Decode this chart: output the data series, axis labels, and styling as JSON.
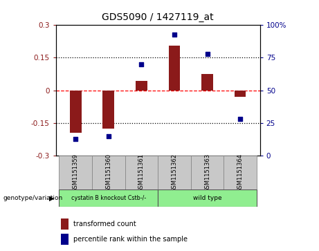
{
  "title": "GDS5090 / 1427119_at",
  "samples": [
    "GSM1151359",
    "GSM1151360",
    "GSM1151361",
    "GSM1151362",
    "GSM1151363",
    "GSM1151364"
  ],
  "bar_values": [
    -0.195,
    -0.175,
    0.045,
    0.205,
    0.075,
    -0.03
  ],
  "percentile_values": [
    13,
    15,
    70,
    93,
    78,
    28
  ],
  "bar_color": "#8B1A1A",
  "dot_color": "#00008B",
  "ylim_left": [
    -0.3,
    0.3
  ],
  "ylim_right": [
    0,
    100
  ],
  "yticks_left": [
    -0.3,
    -0.15,
    0,
    0.15,
    0.3
  ],
  "yticks_right": [
    0,
    25,
    50,
    75,
    100
  ],
  "ytick_labels_left": [
    "-0.3",
    "-0.15",
    "0",
    "0.15",
    "0.3"
  ],
  "ytick_labels_right": [
    "0",
    "25",
    "50",
    "75",
    "100%"
  ],
  "hlines": [
    0.15,
    0,
    -0.15
  ],
  "hline_styles": [
    "dotted",
    "dashed",
    "dotted"
  ],
  "hline_colors": [
    "black",
    "red",
    "black"
  ],
  "group1_label": "cystatin B knockout Cstb-/-",
  "group2_label": "wild type",
  "group1_indices": [
    0,
    1,
    2
  ],
  "group2_indices": [
    3,
    4,
    5
  ],
  "group1_color": "#90EE90",
  "group2_color": "#90EE90",
  "genotype_label": "genotype/variation",
  "legend_bar_label": "transformed count",
  "legend_dot_label": "percentile rank within the sample",
  "bg_color": "#FFFFFF",
  "plot_bg_color": "#FFFFFF",
  "bar_width": 0.35,
  "dot_size": 14
}
